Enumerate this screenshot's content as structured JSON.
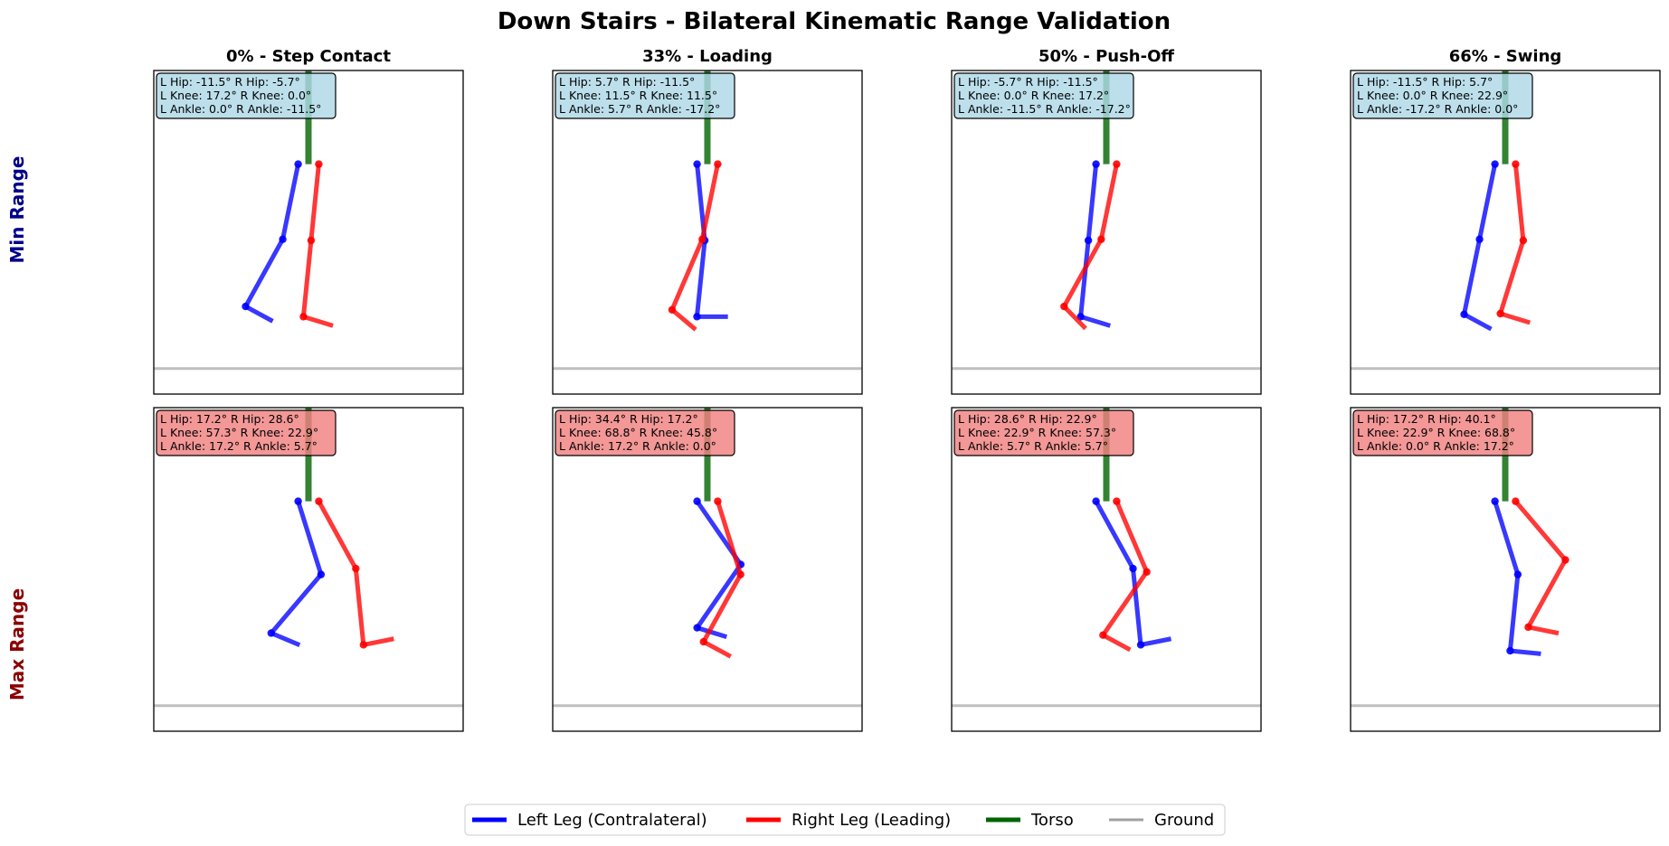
{
  "chart_data": {
    "type": "stick-figure-grid",
    "title": "Down Stairs - Bilateral Kinematic Range Validation",
    "columns": [
      "0% - Step Contact",
      "33% - Loading",
      "50% - Push-Off",
      "66% - Swing"
    ],
    "rows": [
      {
        "label": "Min Range",
        "color": "#00008b",
        "box_color": "#add8e6"
      },
      {
        "label": "Max Range",
        "color": "#8b0000",
        "box_color": "#f08080"
      }
    ],
    "colors": {
      "left": "#0000ff",
      "right": "#ff0000",
      "torso": "#006400",
      "ground": "#808080"
    },
    "segment_lengths": {
      "thigh": 0.45,
      "shank": 0.45,
      "foot": 0.18,
      "torso": 0.8
    },
    "panels": [
      [
        {
          "angles": {
            "l_hip": -11.5,
            "r_hip": -5.7,
            "l_knee": 17.2,
            "r_knee": 0.0,
            "l_ankle": 0.0,
            "r_ankle": -11.5
          },
          "info": [
            "L Hip: -11.5°  R Hip: -5.7°",
            "L Knee: 17.2°  R Knee: 0.0°",
            "L Ankle: 0.0°  R Ankle: -11.5°"
          ]
        },
        {
          "angles": {
            "l_hip": 5.7,
            "r_hip": -11.5,
            "l_knee": 11.5,
            "r_knee": 11.5,
            "l_ankle": 5.7,
            "r_ankle": -17.2
          },
          "info": [
            "L Hip: 5.7°  R Hip: -11.5°",
            "L Knee: 11.5°  R Knee: 11.5°",
            "L Ankle: 5.7°  R Ankle: -17.2°"
          ]
        },
        {
          "angles": {
            "l_hip": -5.7,
            "r_hip": -11.5,
            "l_knee": 0.0,
            "r_knee": 17.2,
            "l_ankle": -11.5,
            "r_ankle": -17.2
          },
          "info": [
            "L Hip: -5.7°  R Hip: -11.5°",
            "L Knee: 0.0°  R Knee: 17.2°",
            "L Ankle: -11.5°  R Ankle: -17.2°"
          ]
        },
        {
          "angles": {
            "l_hip": -11.5,
            "r_hip": 5.7,
            "l_knee": 0.0,
            "r_knee": 22.9,
            "l_ankle": -17.2,
            "r_ankle": 0.0
          },
          "info": [
            "L Hip: -11.5°  R Hip: 5.7°",
            "L Knee: 0.0°  R Knee: 22.9°",
            "L Ankle: -17.2°  R Ankle: 0.0°"
          ]
        }
      ],
      [
        {
          "angles": {
            "l_hip": 17.2,
            "r_hip": 28.6,
            "l_knee": 57.3,
            "r_knee": 22.9,
            "l_ankle": 17.2,
            "r_ankle": 5.7
          },
          "info": [
            "L Hip: 17.2°  R Hip: 28.6°",
            "L Knee: 57.3°  R Knee: 22.9°",
            "L Ankle: 17.2°  R Ankle: 5.7°"
          ]
        },
        {
          "angles": {
            "l_hip": 34.4,
            "r_hip": 17.2,
            "l_knee": 68.8,
            "r_knee": 45.8,
            "l_ankle": 17.2,
            "r_ankle": 0.0
          },
          "info": [
            "L Hip: 34.4°  R Hip: 17.2°",
            "L Knee: 68.8°  R Knee: 45.8°",
            "L Ankle: 17.2°  R Ankle: 0.0°"
          ]
        },
        {
          "angles": {
            "l_hip": 28.6,
            "r_hip": 22.9,
            "l_knee": 22.9,
            "r_knee": 57.3,
            "l_ankle": 5.7,
            "r_ankle": 5.7
          },
          "info": [
            "L Hip: 28.6°  R Hip: 22.9°",
            "L Knee: 22.9°  R Knee: 57.3°",
            "L Ankle: 5.7°  R Ankle: 5.7°"
          ]
        },
        {
          "angles": {
            "l_hip": 17.2,
            "r_hip": 40.1,
            "l_knee": 22.9,
            "r_knee": 68.8,
            "l_ankle": 0.0,
            "r_ankle": 17.2
          },
          "info": [
            "L Hip: 17.2°  R Hip: 40.1°",
            "L Knee: 22.9°  R Knee: 68.8°",
            "L Ankle: 0.0°  R Ankle: 17.2°"
          ]
        }
      ]
    ],
    "legend": {
      "placement": "bottom-center",
      "entries": [
        {
          "key": "left",
          "label": "Left Leg (Contralateral)"
        },
        {
          "key": "right",
          "label": "Right Leg (Leading)"
        },
        {
          "key": "torso",
          "label": "Torso"
        },
        {
          "key": "ground",
          "label": "Ground"
        }
      ]
    }
  }
}
